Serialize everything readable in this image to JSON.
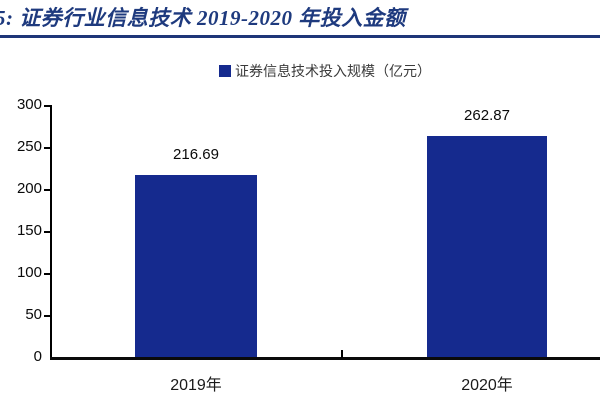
{
  "header": {
    "figure_title": "5: 证券行业信息技术 2019-2020 年投入金额"
  },
  "legend": {
    "label": "证券信息技术投入规模（亿元）"
  },
  "colors": {
    "bar": "#152a8e",
    "legend_swatch": "#152a8e",
    "title_text": "#1e3a7e",
    "title_rule": "#1e3578",
    "axis": "#000000"
  },
  "chart_data": {
    "type": "bar",
    "title": "5: 证券行业信息技术 2019-2020 年投入金额",
    "series": [
      {
        "name": "证券信息技术投入规模（亿元）",
        "values": [
          216.69,
          262.87
        ]
      }
    ],
    "categories": [
      "2019年",
      "2020年"
    ],
    "values": [
      216.69,
      262.87
    ],
    "value_labels": [
      "216.69",
      "262.87"
    ],
    "xlabel": "",
    "ylabel": "",
    "ylim": [
      0,
      300
    ],
    "yticks": [
      0,
      50,
      100,
      150,
      200,
      250,
      300
    ],
    "grid": false,
    "legend_position": "top-center",
    "data_labels_shown": true
  }
}
